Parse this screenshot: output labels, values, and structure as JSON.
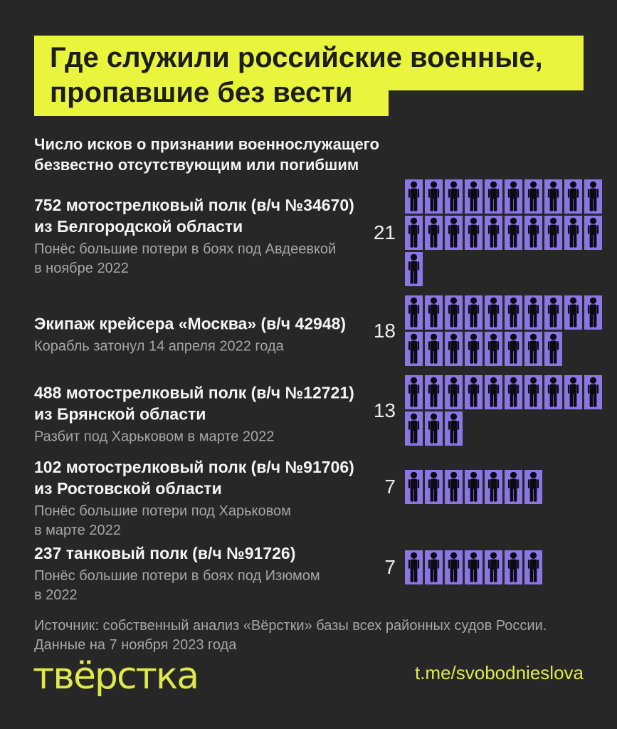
{
  "colors": {
    "background": "#272727",
    "accent_yellow": "#e9f43d",
    "logo_yellow": "#dfe94c",
    "icon_purple": "#8b76e4",
    "icon_figure": "#0d0a14",
    "text_white": "#f4f4f4",
    "text_gray": "#a6a6a6",
    "title_text": "#1d1d1d"
  },
  "header": {
    "title_lines": [
      "Где служили российские военные,",
      "пропавшие без вести"
    ],
    "subtitle_lines": [
      "Число исков о признании военнослужащего",
      "безвестно отсутствующим или погибшим"
    ]
  },
  "chart_data": {
    "type": "pictogram",
    "icon": "person-icon",
    "icons_per_row": 10,
    "icon_unit": 1,
    "title": "Где служили российские военные, пропавшие без вести",
    "subtitle": "Число исков о признании военнослужащего безвестно отсутствующим или погибшим",
    "categories": [
      "752 мотострелковый полк (в/ч №34670) из Белгородской области",
      "Экипаж крейсера «Москва» (в/ч 42948)",
      "488 мотострелковый полк (в/ч №12721) из Брянской области",
      "102 мотострелковый полк (в/ч №91706) из Ростовской области",
      "237 танковый полк (в/ч №91726)"
    ],
    "values": [
      21,
      18,
      13,
      7,
      7
    ],
    "entries": [
      {
        "label_lines": [
          "752 мотострелковый полк (в/ч №34670)",
          "из Белгородской области"
        ],
        "note_lines": [
          "Понёс большие потери в боях под Авдеевкой",
          "в ноябре 2022"
        ],
        "value": 21
      },
      {
        "label_lines": [
          "Экипаж крейсера «Москва» (в/ч 42948)"
        ],
        "note_lines": [
          "Корабль затонул 14 апреля 2022 года"
        ],
        "value": 18
      },
      {
        "label_lines": [
          "488 мотострелковый полк (в/ч №12721)",
          "из Брянской области"
        ],
        "note_lines": [
          "Разбит под Харьковом в марте 2022"
        ],
        "value": 13
      },
      {
        "label_lines": [
          "102 мотострелковый полк (в/ч №91706)",
          "из Ростовской области"
        ],
        "note_lines": [
          "Понёс большие потери под Харьковом",
          "в марте 2022"
        ],
        "value": 7
      },
      {
        "label_lines": [
          "237 танковый полк (в/ч №91726)"
        ],
        "note_lines": [
          "Понёс большие потери в боях под Изюмом",
          "в 2022"
        ],
        "value": 7
      }
    ]
  },
  "footer": {
    "source_lines": [
      "Источник: собственный анализ «Вёрстки» базы всех районных судов России.",
      "Данные на 7 ноября 2023 года"
    ],
    "logo_text": "твёрстка",
    "link_text": "t.me/svobodnieslova"
  }
}
